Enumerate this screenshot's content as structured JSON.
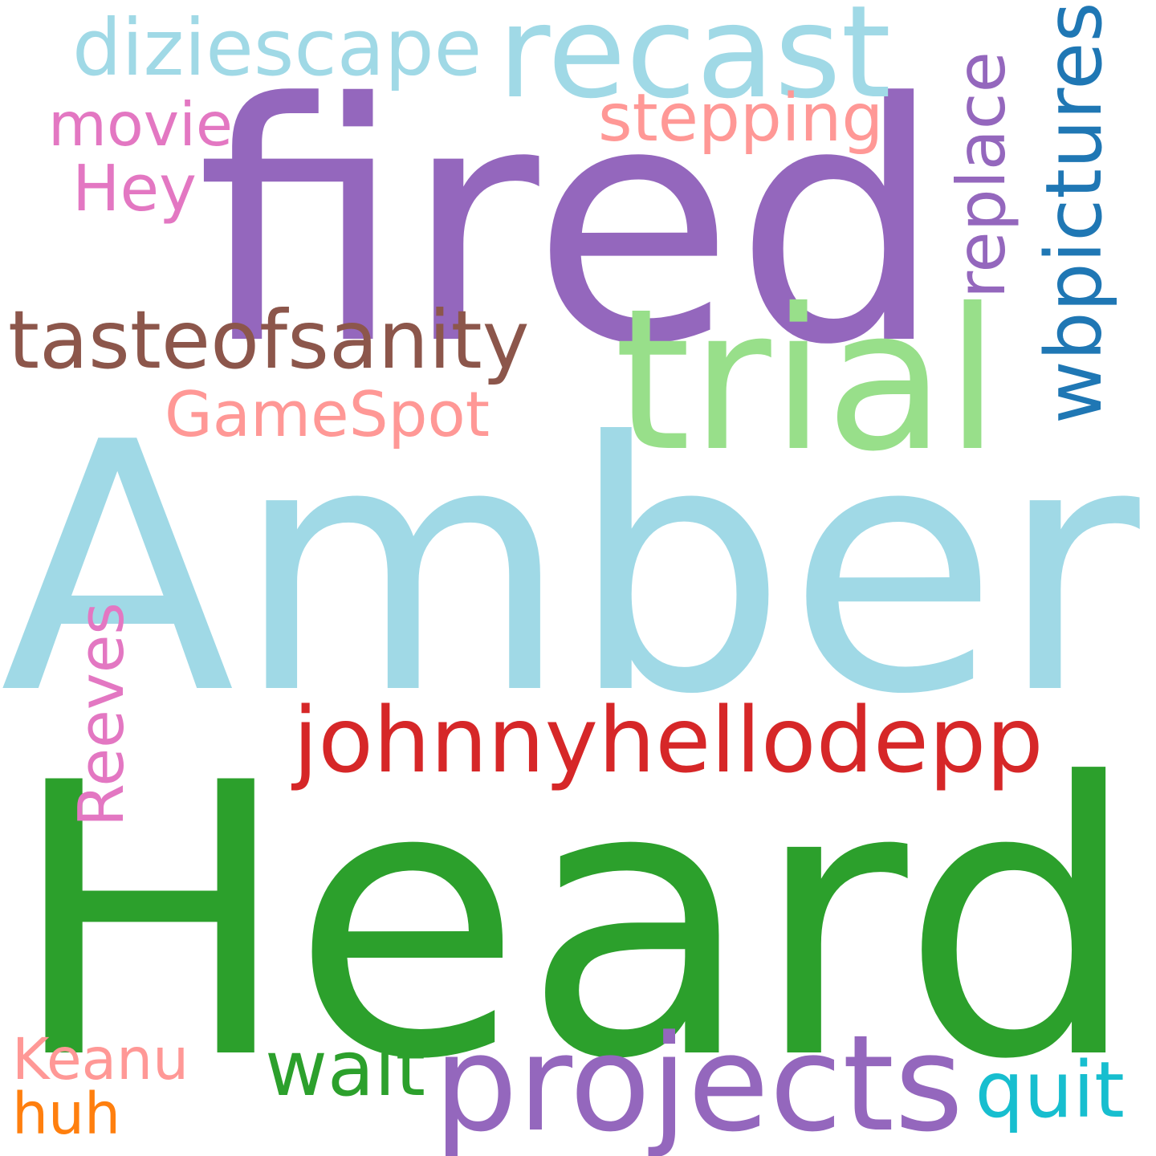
{
  "words": [
    {
      "text": "Heard",
      "color": "#2ca02c",
      "vertical": false
    },
    {
      "text": "Amber",
      "color": "#a0d9e6",
      "vertical": false
    },
    {
      "text": "fired",
      "color": "#9467bd",
      "vertical": false
    },
    {
      "text": "trial",
      "color": "#98df8a",
      "vertical": false
    },
    {
      "text": "projects",
      "color": "#9467bd",
      "vertical": false
    },
    {
      "text": "recast",
      "color": "#a0d9e6",
      "vertical": false
    },
    {
      "text": "johnnyhellodepp",
      "color": "#d62728",
      "vertical": false
    },
    {
      "text": "tasteofsanity",
      "color": "#8c564b",
      "vertical": false
    },
    {
      "text": "wbpictures",
      "color": "#1f77b4",
      "vertical": true
    },
    {
      "text": "GameSpot",
      "color": "#ff9896",
      "vertical": false
    },
    {
      "text": "dizie​scape",
      "color": "#a0d9e6",
      "vertical": false
    },
    {
      "text": "replace",
      "color": "#9467bd",
      "vertical": true
    },
    {
      "text": "stepping",
      "color": "#ff9896",
      "vertical": false
    },
    {
      "text": "quit",
      "color": "#17becf",
      "vertical": false
    },
    {
      "text": "Reeves",
      "color": "#e377c2",
      "vertical": true
    },
    {
      "text": "wait",
      "color": "#2ca02c",
      "vertical": false
    },
    {
      "text": "Hey",
      "color": "#e377c2",
      "vertical": false
    },
    {
      "text": "movie",
      "color": "#e377c2",
      "vertical": false
    },
    {
      "text": "Keanu",
      "color": "#ff9896",
      "vertical": false
    },
    {
      "text": "huh",
      "color": "#ff7f0e",
      "vertical": false
    }
  ]
}
